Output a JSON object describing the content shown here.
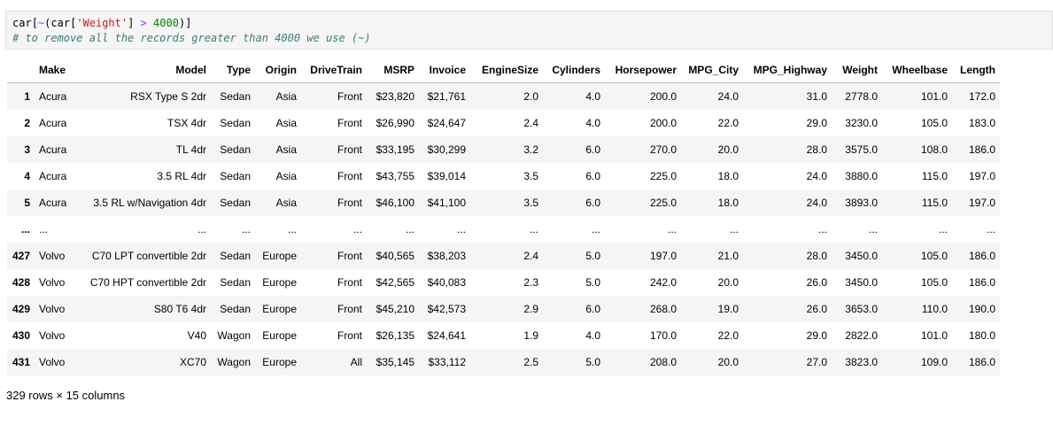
{
  "code": {
    "line1_tokens": {
      "t1": "car",
      "t2": "[",
      "t3": "~",
      "t4": "(",
      "t5": "car",
      "t6": "[",
      "t7": "'Weight'",
      "t8": "]",
      "t9": " ",
      "t10": ">",
      "t11": " ",
      "t12": "4000",
      "t13": ")",
      "t14": "]"
    },
    "comment": "# to remove all the records greater than 4000 we use (~)"
  },
  "table": {
    "columns": [
      "",
      "Make",
      "Model",
      "Type",
      "Origin",
      "DriveTrain",
      "MSRP",
      "Invoice",
      "EngineSize",
      "Cylinders",
      "Horsepower",
      "MPG_City",
      "MPG_Highway",
      "Weight",
      "Wheelbase",
      "Length"
    ],
    "rows": [
      [
        "1",
        "Acura",
        "RSX Type S 2dr",
        "Sedan",
        "Asia",
        "Front",
        "$23,820",
        "$21,761",
        "2.0",
        "4.0",
        "200.0",
        "24.0",
        "31.0",
        "2778.0",
        "101.0",
        "172.0"
      ],
      [
        "2",
        "Acura",
        "TSX 4dr",
        "Sedan",
        "Asia",
        "Front",
        "$26,990",
        "$24,647",
        "2.4",
        "4.0",
        "200.0",
        "22.0",
        "29.0",
        "3230.0",
        "105.0",
        "183.0"
      ],
      [
        "3",
        "Acura",
        "TL 4dr",
        "Sedan",
        "Asia",
        "Front",
        "$33,195",
        "$30,299",
        "3.2",
        "6.0",
        "270.0",
        "20.0",
        "28.0",
        "3575.0",
        "108.0",
        "186.0"
      ],
      [
        "4",
        "Acura",
        "3.5 RL 4dr",
        "Sedan",
        "Asia",
        "Front",
        "$43,755",
        "$39,014",
        "3.5",
        "6.0",
        "225.0",
        "18.0",
        "24.0",
        "3880.0",
        "115.0",
        "197.0"
      ],
      [
        "5",
        "Acura",
        "3.5 RL w/Navigation 4dr",
        "Sedan",
        "Asia",
        "Front",
        "$46,100",
        "$41,100",
        "3.5",
        "6.0",
        "225.0",
        "18.0",
        "24.0",
        "3893.0",
        "115.0",
        "197.0"
      ],
      [
        "...",
        "...",
        "...",
        "...",
        "...",
        "...",
        "...",
        "...",
        "...",
        "...",
        "...",
        "...",
        "...",
        "...",
        "...",
        "..."
      ],
      [
        "427",
        "Volvo",
        "C70 LPT convertible 2dr",
        "Sedan",
        "Europe",
        "Front",
        "$40,565",
        "$38,203",
        "2.4",
        "5.0",
        "197.0",
        "21.0",
        "28.0",
        "3450.0",
        "105.0",
        "186.0"
      ],
      [
        "428",
        "Volvo",
        "C70 HPT convertible 2dr",
        "Sedan",
        "Europe",
        "Front",
        "$42,565",
        "$40,083",
        "2.3",
        "5.0",
        "242.0",
        "20.0",
        "26.0",
        "3450.0",
        "105.0",
        "186.0"
      ],
      [
        "429",
        "Volvo",
        "S80 T6 4dr",
        "Sedan",
        "Europe",
        "Front",
        "$45,210",
        "$42,573",
        "2.9",
        "6.0",
        "268.0",
        "19.0",
        "26.0",
        "3653.0",
        "110.0",
        "190.0"
      ],
      [
        "430",
        "Volvo",
        "V40",
        "Wagon",
        "Europe",
        "Front",
        "$26,135",
        "$24,641",
        "1.9",
        "4.0",
        "170.0",
        "22.0",
        "29.0",
        "2822.0",
        "101.0",
        "180.0"
      ],
      [
        "431",
        "Volvo",
        "XC70",
        "Wagon",
        "Europe",
        "All",
        "$35,145",
        "$33,112",
        "2.5",
        "5.0",
        "208.0",
        "20.0",
        "27.0",
        "3823.0",
        "109.0",
        "186.0"
      ]
    ]
  },
  "shape_text": "329 rows × 15 columns"
}
